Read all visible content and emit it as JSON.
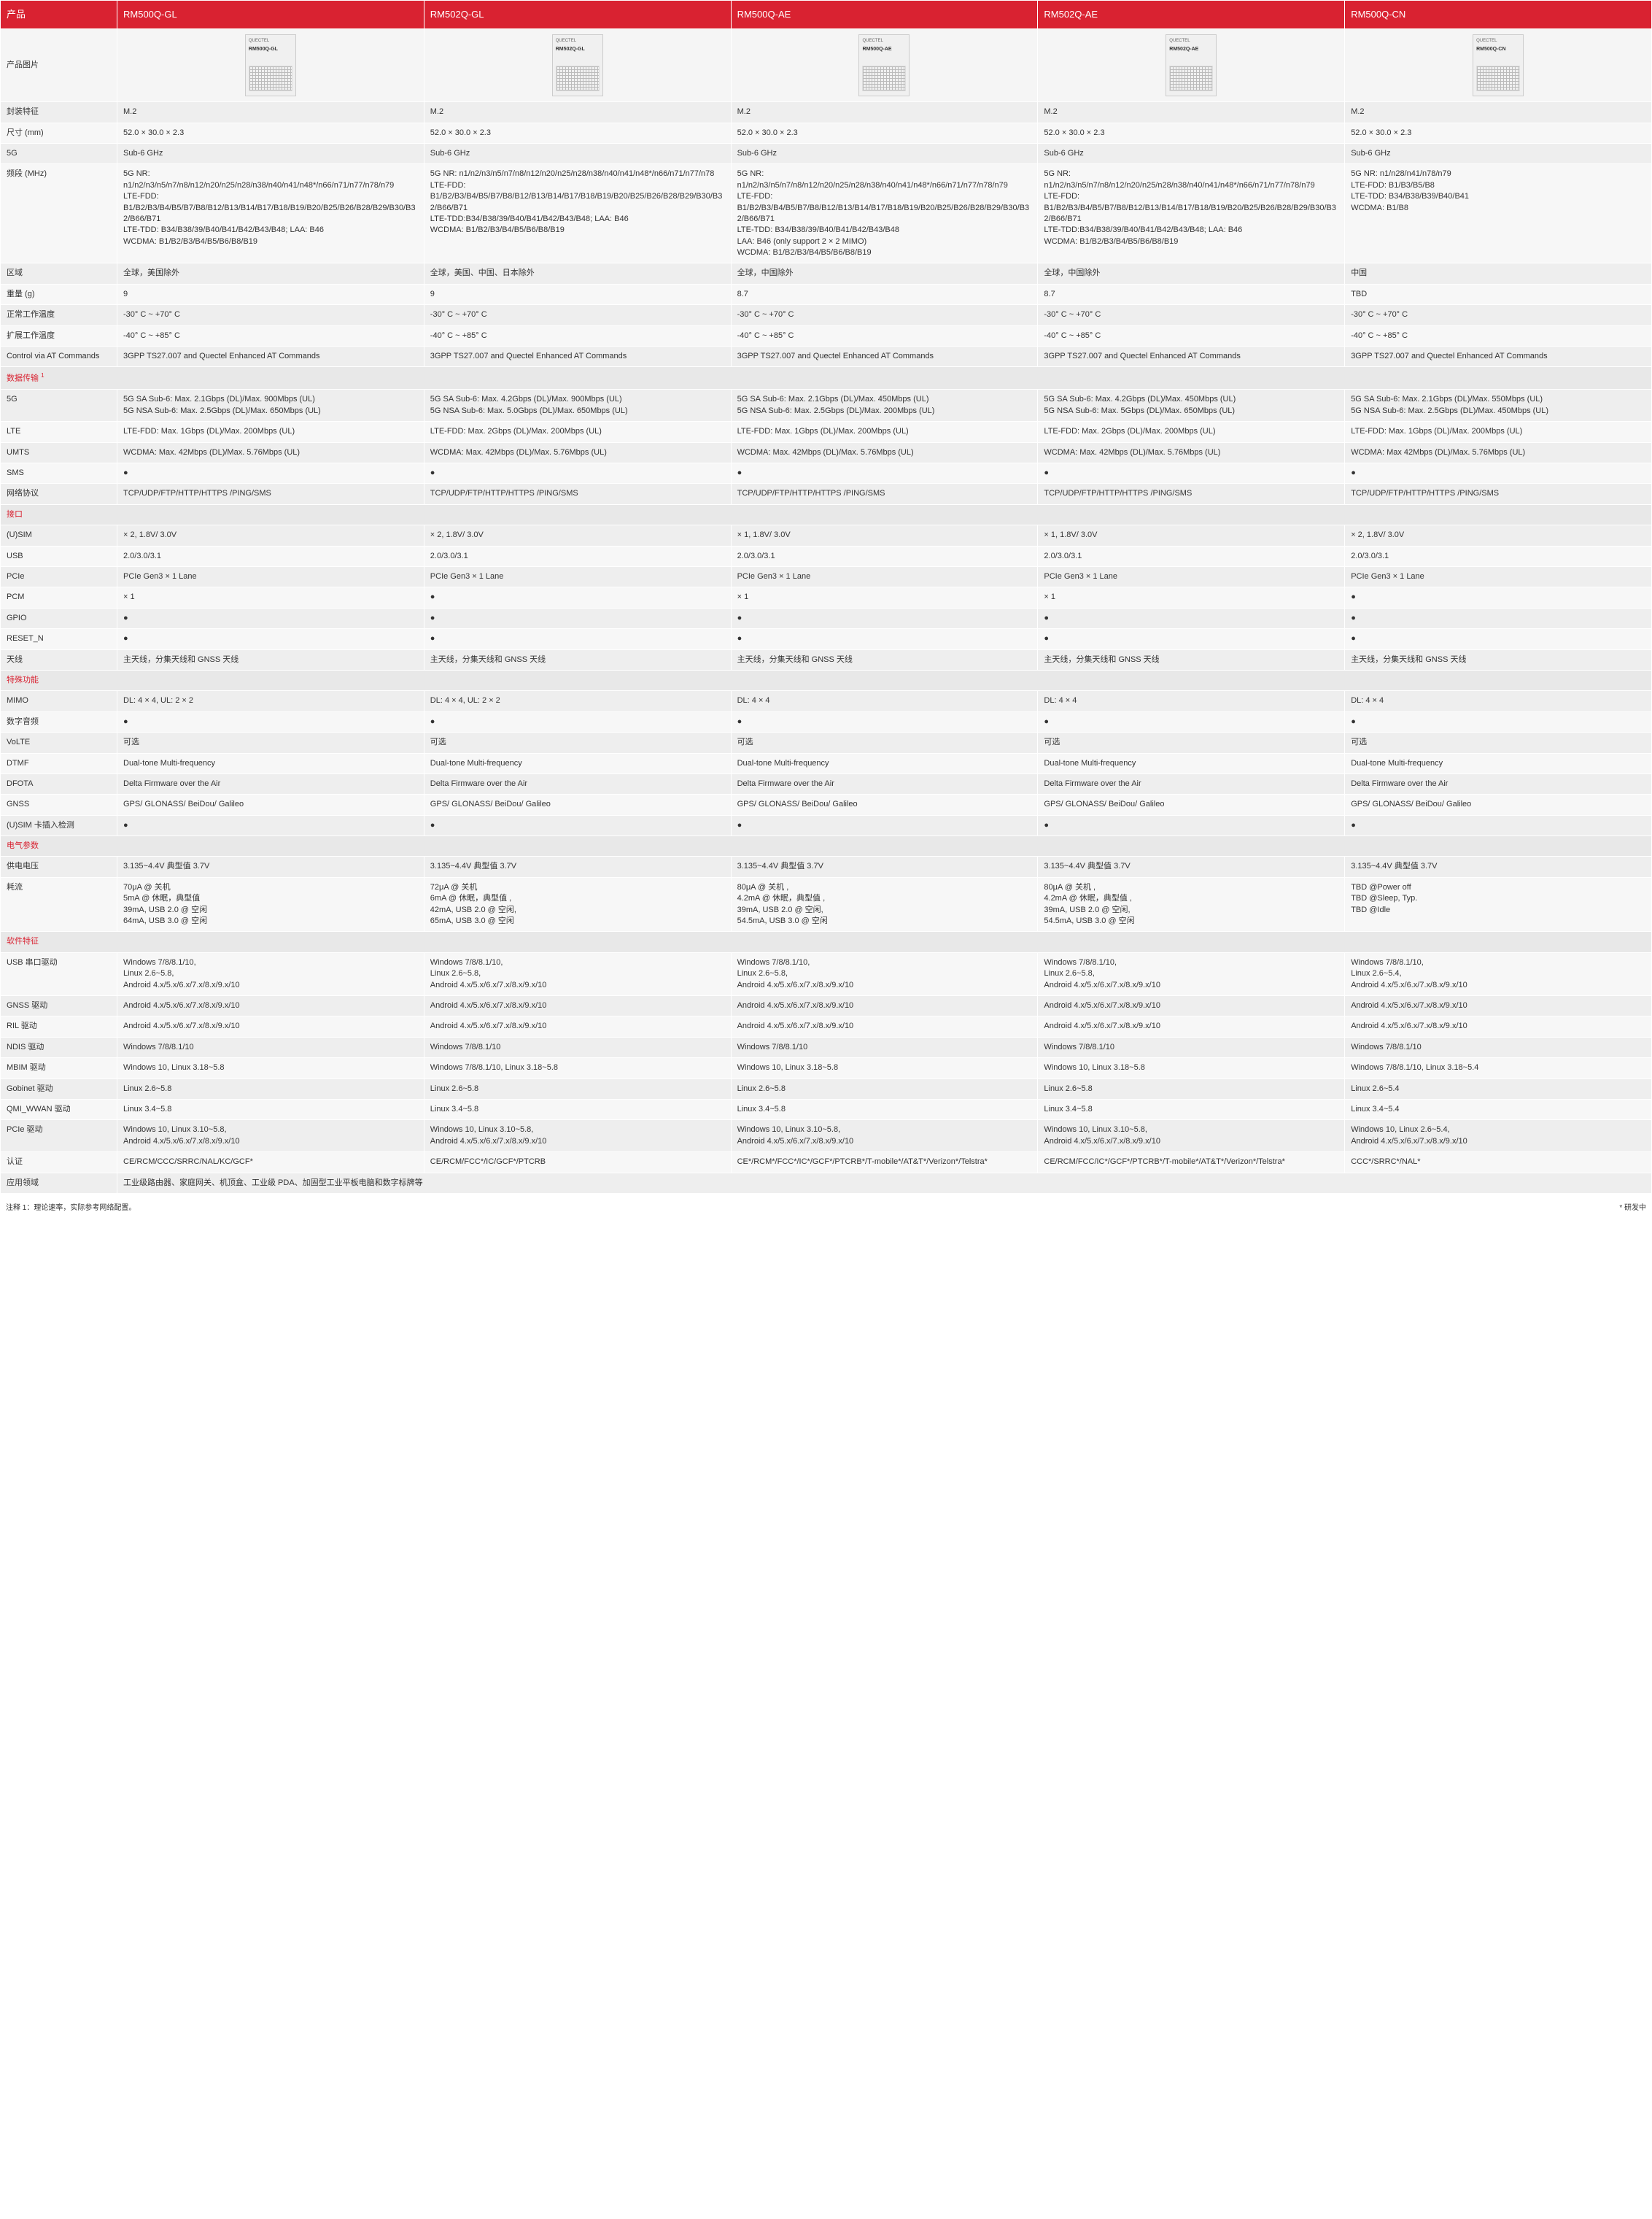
{
  "header": {
    "col0": "产品",
    "products": [
      "RM500Q-GL",
      "RM502Q-GL",
      "RM500Q-AE",
      "RM502Q-AE",
      "RM500Q-CN"
    ]
  },
  "imgRow": {
    "label": "产品图片",
    "brand": "QUECTEL"
  },
  "sections": {
    "data": "数据传输",
    "iface": "接口",
    "special": "特殊功能",
    "elec": "电气参数",
    "soft": "软件特征"
  },
  "rows": {
    "pkg": {
      "label": "封装特征",
      "v": [
        "M.2",
        "M.2",
        "M.2",
        "M.2",
        "M.2"
      ]
    },
    "dim": {
      "label": "尺寸 (mm)",
      "v": [
        "52.0 × 30.0 × 2.3",
        "52.0 × 30.0 × 2.3",
        "52.0 × 30.0 × 2.3",
        "52.0 × 30.0 × 2.3",
        "52.0 × 30.0 × 2.3"
      ]
    },
    "fiveg": {
      "label": "5G",
      "v": [
        "Sub-6 GHz",
        "Sub-6 GHz",
        "Sub-6 GHz",
        "Sub-6 GHz",
        "Sub-6 GHz"
      ]
    },
    "freq": {
      "label": "频段 (MHz)",
      "v": [
        "5G NR: n1/n2/n3/n5/n7/n8/n12/n20/n25/n28/n38/n40/n41/n48*/n66/n71/n77/n78/n79\nLTE-FDD: B1/B2/B3/B4/B5/B7/B8/B12/B13/B14/B17/B18/B19/B20/B25/B26/B28/B29/B30/B32/B66/B71\nLTE-TDD: B34/B38/39/B40/B41/B42/B43/B48; LAA: B46\nWCDMA: B1/B2/B3/B4/B5/B6/B8/B19",
        "5G NR: n1/n2/n3/n5/n7/n8/n12/n20/n25/n28/n38/n40/n41/n48*/n66/n71/n77/n78\nLTE-FDD: B1/B2/B3/B4/B5/B7/B8/B12/B13/B14/B17/B18/B19/B20/B25/B26/B28/B29/B30/B32/B66/B71\nLTE-TDD:B34/B38/39/B40/B41/B42/B43/B48; LAA: B46\nWCDMA: B1/B2/B3/B4/B5/B6/B8/B19",
        "5G NR: n1/n2/n3/n5/n7/n8/n12/n20/n25/n28/n38/n40/n41/n48*/n66/n71/n77/n78/n79\nLTE-FDD: B1/B2/B3/B4/B5/B7/B8/B12/B13/B14/B17/B18/B19/B20/B25/B26/B28/B29/B30/B32/B66/B71\nLTE-TDD: B34/B38/39/B40/B41/B42/B43/B48\nLAA: B46 (only support 2 × 2 MIMO)\nWCDMA: B1/B2/B3/B4/B5/B6/B8/B19",
        "5G NR: n1/n2/n3/n5/n7/n8/n12/n20/n25/n28/n38/n40/n41/n48*/n66/n71/n77/n78/n79\nLTE-FDD: B1/B2/B3/B4/B5/B7/B8/B12/B13/B14/B17/B18/B19/B20/B25/B26/B28/B29/B30/B32/B66/B71\nLTE-TDD:B34/B38/39/B40/B41/B42/B43/B48; LAA: B46\nWCDMA: B1/B2/B3/B4/B5/B6/B8/B19",
        "5G NR: n1/n28/n41/n78/n79\nLTE-FDD: B1/B3/B5/B8\nLTE-TDD: B34/B38/B39/B40/B41\nWCDMA: B1/B8"
      ]
    },
    "region": {
      "label": "区域",
      "v": [
        "全球，美国除外",
        "全球，美国、中国、日本除外",
        "全球，中国除外",
        "全球，中国除外",
        "中国"
      ]
    },
    "weight": {
      "label": "重量 (g)",
      "v": [
        "9",
        "9",
        "8.7",
        "8.7",
        "TBD"
      ]
    },
    "temp1": {
      "label": "正常工作温度",
      "v": [
        "-30° C ~ +70° C",
        "-30° C ~ +70° C",
        "-30° C ~ +70° C",
        "-30° C ~ +70° C",
        "-30° C ~ +70° C"
      ]
    },
    "temp2": {
      "label": "扩展工作温度",
      "v": [
        "-40° C ~ +85° C",
        "-40° C ~ +85° C",
        "-40° C ~ +85° C",
        "-40° C ~ +85° C",
        "-40° C ~ +85° C"
      ]
    },
    "at": {
      "label": "Control via AT Commands",
      "v": [
        "3GPP TS27.007 and Quectel Enhanced AT Commands",
        "3GPP TS27.007 and Quectel Enhanced AT Commands",
        "3GPP TS27.007 and Quectel Enhanced AT Commands",
        "3GPP TS27.007 and Quectel Enhanced AT Commands",
        "3GPP TS27.007 and Quectel Enhanced AT Commands"
      ]
    },
    "d5g": {
      "label": "5G",
      "v": [
        "5G SA Sub-6: Max. 2.1Gbps (DL)/Max. 900Mbps (UL)\n5G NSA Sub-6: Max. 2.5Gbps (DL)/Max. 650Mbps (UL)",
        "5G SA Sub-6: Max. 4.2Gbps (DL)/Max. 900Mbps (UL)\n5G NSA Sub-6: Max. 5.0Gbps (DL)/Max. 650Mbps (UL)",
        "5G SA Sub-6: Max. 2.1Gbps (DL)/Max. 450Mbps (UL)\n5G NSA Sub-6: Max. 2.5Gbps (DL)/Max. 200Mbps (UL)",
        "5G SA Sub-6: Max. 4.2Gbps (DL)/Max. 450Mbps (UL)\n5G NSA Sub-6: Max. 5Gbps (DL)/Max. 650Mbps (UL)",
        "5G SA Sub-6: Max. 2.1Gbps (DL)/Max. 550Mbps (UL)\n5G NSA Sub-6: Max. 2.5Gbps (DL)/Max. 450Mbps (UL)"
      ]
    },
    "lte": {
      "label": "LTE",
      "v": [
        "LTE-FDD: Max. 1Gbps (DL)/Max. 200Mbps (UL)",
        "LTE-FDD: Max. 2Gbps (DL)/Max. 200Mbps (UL)",
        "LTE-FDD: Max. 1Gbps (DL)/Max. 200Mbps (UL)",
        "LTE-FDD: Max. 2Gbps (DL)/Max. 200Mbps (UL)",
        "LTE-FDD: Max. 1Gbps (DL)/Max. 200Mbps (UL)"
      ]
    },
    "umts": {
      "label": "UMTS",
      "v": [
        "WCDMA: Max. 42Mbps (DL)/Max. 5.76Mbps (UL)",
        "WCDMA: Max. 42Mbps (DL)/Max. 5.76Mbps (UL)",
        "WCDMA: Max. 42Mbps (DL)/Max. 5.76Mbps (UL)",
        "WCDMA: Max. 42Mbps (DL)/Max. 5.76Mbps (UL)",
        "WCDMA: Max 42Mbps (DL)/Max. 5.76Mbps (UL)"
      ]
    },
    "sms": {
      "label": "SMS",
      "v": [
        "●",
        "●",
        "●",
        "●",
        "●"
      ]
    },
    "proto": {
      "label": "网络协议",
      "v": [
        "TCP/UDP/FTP/HTTP/HTTPS /PING/SMS",
        "TCP/UDP/FTP/HTTP/HTTPS /PING/SMS",
        "TCP/UDP/FTP/HTTP/HTTPS /PING/SMS",
        "TCP/UDP/FTP/HTTP/HTTPS /PING/SMS",
        "TCP/UDP/FTP/HTTP/HTTPS /PING/SMS"
      ]
    },
    "usim": {
      "label": "(U)SIM",
      "v": [
        "× 2, 1.8V/ 3.0V",
        "× 2, 1.8V/ 3.0V",
        "× 1, 1.8V/ 3.0V",
        "× 1, 1.8V/ 3.0V",
        "× 2, 1.8V/ 3.0V"
      ]
    },
    "usb": {
      "label": "USB",
      "v": [
        "2.0/3.0/3.1",
        "2.0/3.0/3.1",
        "2.0/3.0/3.1",
        "2.0/3.0/3.1",
        "2.0/3.0/3.1"
      ]
    },
    "pcie": {
      "label": "PCIe",
      "v": [
        "PCIe Gen3 × 1 Lane",
        "PCIe Gen3 × 1 Lane",
        "PCIe Gen3 × 1 Lane",
        "PCIe Gen3 × 1 Lane",
        "PCIe Gen3 × 1 Lane"
      ]
    },
    "pcm": {
      "label": "PCM",
      "v": [
        "× 1",
        "●",
        "× 1",
        "× 1",
        "●"
      ]
    },
    "gpio": {
      "label": "GPIO",
      "v": [
        "●",
        "●",
        "●",
        "●",
        "●"
      ]
    },
    "reset": {
      "label": "RESET_N",
      "v": [
        "●",
        "●",
        "●",
        "●",
        "●"
      ]
    },
    "ant": {
      "label": "天线",
      "v": [
        "主天线，分集天线和 GNSS 天线",
        "主天线，分集天线和 GNSS 天线",
        "主天线，分集天线和 GNSS 天线",
        "主天线，分集天线和 GNSS 天线",
        "主天线，分集天线和 GNSS 天线"
      ]
    },
    "mimo": {
      "label": "MIMO",
      "v": [
        "DL: 4 × 4, UL: 2 × 2",
        "DL: 4 × 4, UL: 2 × 2",
        "DL: 4 × 4",
        "DL: 4 × 4",
        "DL: 4 × 4"
      ]
    },
    "audio": {
      "label": "数字音频",
      "v": [
        "●",
        "●",
        "●",
        "●",
        "●"
      ]
    },
    "volte": {
      "label": "VoLTE",
      "v": [
        "可选",
        "可选",
        "可选",
        "可选",
        "可选"
      ]
    },
    "dtmf": {
      "label": "DTMF",
      "v": [
        "Dual-tone Multi-frequency",
        "Dual-tone Multi-frequency",
        "Dual-tone Multi-frequency",
        "Dual-tone Multi-frequency",
        "Dual-tone Multi-frequency"
      ]
    },
    "dfota": {
      "label": "DFOTA",
      "v": [
        "Delta Firmware over the Air",
        "Delta Firmware over the Air",
        "Delta Firmware over the Air",
        "Delta Firmware over the Air",
        "Delta Firmware over the Air"
      ]
    },
    "gnss": {
      "label": "GNSS",
      "v": [
        "GPS/ GLONASS/ BeiDou/ Galileo",
        "GPS/ GLONASS/ BeiDou/ Galileo",
        "GPS/ GLONASS/ BeiDou/ Galileo",
        "GPS/ GLONASS/ BeiDou/ Galileo",
        "GPS/ GLONASS/ BeiDou/ Galileo"
      ]
    },
    "usimdet": {
      "label": "(U)SIM 卡插入检测",
      "v": [
        "●",
        "●",
        "●",
        "●",
        "●"
      ]
    },
    "volt": {
      "label": "供电电压",
      "v": [
        "3.135~4.4V 典型值 3.7V",
        "3.135~4.4V 典型值 3.7V",
        "3.135~4.4V 典型值 3.7V",
        "3.135~4.4V 典型值 3.7V",
        "3.135~4.4V 典型值 3.7V"
      ]
    },
    "curr": {
      "label": "耗流",
      "v": [
        "70μA @ 关机\n5mA @ 休眠，典型值\n39mA, USB 2.0 @ 空闲\n64mA, USB 3.0 @ 空闲",
        "72μA @ 关机\n6mA @ 休眠，典型值 ,\n42mA, USB 2.0 @ 空闲,\n65mA, USB 3.0 @ 空闲",
        "80μA @ 关机 ,\n4.2mA @ 休眠，典型值 ,\n39mA, USB 2.0 @ 空闲,\n54.5mA, USB 3.0 @ 空闲",
        "80μA @ 关机 ,\n4.2mA @ 休眠，典型值 ,\n39mA, USB 2.0 @ 空闲,\n54.5mA, USB 3.0 @ 空闲",
        "TBD @Power off\nTBD @Sleep, Typ.\nTBD @Idle"
      ]
    },
    "usbdrv": {
      "label": "USB 串口驱动",
      "v": [
        "Windows 7/8/8.1/10,\nLinux 2.6~5.8,\nAndroid 4.x/5.x/6.x/7.x/8.x/9.x/10",
        "Windows 7/8/8.1/10,\nLinux 2.6~5.8,\nAndroid 4.x/5.x/6.x/7.x/8.x/9.x/10",
        "Windows 7/8/8.1/10,\nLinux  2.6~5.8,\nAndroid 4.x/5.x/6.x/7.x/8.x/9.x/10",
        "Windows 7/8/8.1/10,\nLinux 2.6~5.8,\nAndroid 4.x/5.x/6.x/7.x/8.x/9.x/10",
        "Windows 7/8/8.1/10,\nLinux  2.6~5.4,\nAndroid 4.x/5.x/6.x/7.x/8.x/9.x/10"
      ]
    },
    "gnssdrv": {
      "label": "GNSS 驱动",
      "v": [
        "Android 4.x/5.x/6.x/7.x/8.x/9.x/10",
        "Android 4.x/5.x/6.x/7.x/8.x/9.x/10",
        "Android 4.x/5.x/6.x/7.x/8.x/9.x/10",
        "Android 4.x/5.x/6.x/7.x/8.x/9.x/10",
        "Android 4.x/5.x/6.x/7.x/8.x/9.x/10"
      ]
    },
    "rildrv": {
      "label": "RIL 驱动",
      "v": [
        "Android 4.x/5.x/6.x/7.x/8.x/9.x/10",
        "Android 4.x/5.x/6.x/7.x/8.x/9.x/10",
        "Android 4.x/5.x/6.x/7.x/8.x/9.x/10",
        "Android 4.x/5.x/6.x/7.x/8.x/9.x/10",
        "Android 4.x/5.x/6.x/7.x/8.x/9.x/10"
      ]
    },
    "ndis": {
      "label": "NDIS 驱动",
      "v": [
        "Windows 7/8/8.1/10",
        "Windows 7/8/8.1/10",
        "Windows 7/8/8.1/10",
        "Windows 7/8/8.1/10",
        "Windows 7/8/8.1/10"
      ]
    },
    "mbim": {
      "label": "MBIM 驱动",
      "v": [
        "Windows 10, Linux 3.18~5.8",
        "Windows 7/8/8.1/10, Linux 3.18~5.8",
        "Windows 10, Linux 3.18~5.8",
        "Windows 10, Linux 3.18~5.8",
        "Windows 7/8/8.1/10, Linux 3.18~5.4"
      ]
    },
    "gobi": {
      "label": "Gobinet 驱动",
      "v": [
        "Linux 2.6~5.8",
        "Linux 2.6~5.8",
        "Linux 2.6~5.8",
        "Linux 2.6~5.8",
        "Linux 2.6~5.4"
      ]
    },
    "qmi": {
      "label": "QMI_WWAN 驱动",
      "v": [
        "Linux 3.4~5.8",
        "Linux 3.4~5.8",
        "Linux 3.4~5.8",
        "Linux 3.4~5.8",
        "Linux 3.4~5.4"
      ]
    },
    "pciedrv": {
      "label": "PCIe 驱动",
      "v": [
        "Windows 10, Linux 3.10~5.8,\nAndroid 4.x/5.x/6.x/7.x/8.x/9.x/10",
        "Windows 10, Linux 3.10~5.8,\nAndroid 4.x/5.x/6.x/7.x/8.x/9.x/10",
        "Windows 10, Linux 3.10~5.8,\nAndroid 4.x/5.x/6.x/7.x/8.x/9.x/10",
        "Windows 10, Linux 3.10~5.8,\nAndroid 4.x/5.x/6.x/7.x/8.x/9.x/10",
        "Windows 10, Linux 2.6~5.4,\nAndroid 4.x/5.x/6.x/7.x/8.x/9.x/10"
      ]
    },
    "cert": {
      "label": "认证",
      "v": [
        "CE/RCM/CCC/SRRC/NAL/KC/GCF*",
        "CE/RCM/FCC*/IC/GCF*/PTCRB",
        "CE*/RCM*/FCC*/IC*/GCF*/PTCRB*/T-mobile*/AT&T*/Verizon*/Telstra*",
        "CE/RCM/FCC/IC*/GCF*/PTCRB*/T-mobile*/AT&T*/Verizon*/Telstra*",
        "CCC*/SRRC*/NAL*"
      ]
    },
    "app": {
      "label": "应用领域",
      "v": "工业级路由器、家庭网关、机顶盒、工业级 PDA、加固型工业平板电脑和数字标牌等"
    }
  },
  "footer": {
    "note1": "注释 1：理论速率，实际参考网络配置。",
    "note2": "* 研发中"
  }
}
